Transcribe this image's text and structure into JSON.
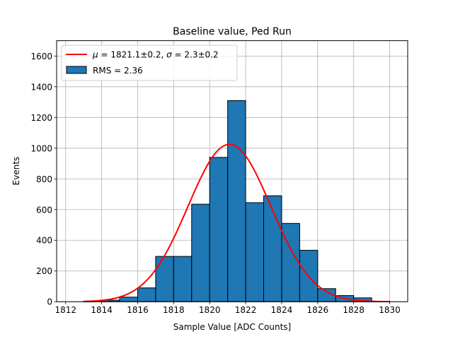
{
  "chart_data": {
    "type": "bar",
    "title": "Baseline value, Ped Run",
    "xlabel": "Sample Value [ADC Counts]",
    "ylabel": "Events",
    "xlim": [
      1811.5,
      1831
    ],
    "ylim": [
      0,
      1700
    ],
    "xticks": [
      1812,
      1814,
      1816,
      1818,
      1820,
      1822,
      1824,
      1826,
      1828,
      1830
    ],
    "yticks": [
      0,
      200,
      400,
      600,
      800,
      1000,
      1200,
      1400,
      1600
    ],
    "grid": true,
    "legend_position": "upper-left",
    "bins": [
      {
        "left": 1813.0,
        "right": 1814.0,
        "value": 3
      },
      {
        "left": 1814.0,
        "right": 1815.0,
        "value": 10
      },
      {
        "left": 1815.0,
        "right": 1816.0,
        "value": 30
      },
      {
        "left": 1816.0,
        "right": 1817.0,
        "value": 90
      },
      {
        "left": 1817.0,
        "right": 1818.0,
        "value": 295
      },
      {
        "left": 1818.0,
        "right": 1819.0,
        "value": 295
      },
      {
        "left": 1819.0,
        "right": 1820.0,
        "value": 635
      },
      {
        "left": 1820.0,
        "right": 1821.0,
        "value": 940
      },
      {
        "left": 1821.0,
        "right": 1822.0,
        "value": 1310
      },
      {
        "left": 1822.0,
        "right": 1823.0,
        "value": 645
      },
      {
        "left": 1823.0,
        "right": 1824.0,
        "value": 690
      },
      {
        "left": 1824.0,
        "right": 1825.0,
        "value": 510
      },
      {
        "left": 1825.0,
        "right": 1826.0,
        "value": 335
      },
      {
        "left": 1826.0,
        "right": 1827.0,
        "value": 85
      },
      {
        "left": 1827.0,
        "right": 1828.0,
        "value": 40
      },
      {
        "left": 1828.0,
        "right": 1829.0,
        "value": 25
      },
      {
        "left": 1829.0,
        "right": 1830.0,
        "value": 3
      }
    ],
    "fit": {
      "type": "gaussian",
      "mean": 1821.1,
      "sigma": 2.3,
      "amplitude": 1025,
      "x_range": [
        1813,
        1830
      ]
    },
    "series": [
      {
        "name": "$\\mu = 1821.1 \\pm 0.2$, $\\sigma = 2.3 \\pm 0.2$",
        "kind": "line",
        "color": "#ff0000"
      },
      {
        "name": "RMS = 2.36",
        "kind": "histogram",
        "color": "#1f77b4",
        "edge": "#000000"
      }
    ],
    "legend": {
      "fit_mu_symbol": "μ",
      "fit_mu_value": " = 1821.1±0.2, ",
      "fit_sigma_symbol": "σ",
      "fit_sigma_value": " = 2.3±0.2",
      "hist_label": "RMS = 2.36"
    }
  }
}
